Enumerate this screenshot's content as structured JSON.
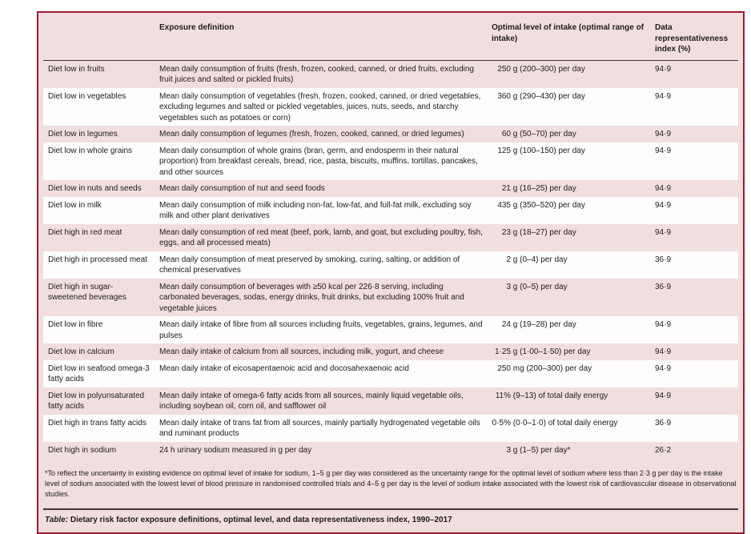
{
  "table": {
    "columns": [
      "",
      "Exposure definition",
      "Optimal level of intake (optimal range of intake)",
      "Data representativeness index (%)"
    ],
    "rows": [
      {
        "risk": "Diet low in fruits",
        "definition": "Mean daily consumption of fruits (fresh, frozen, cooked, canned, or dried fruits, excluding fruit juices and salted or pickled fruits)",
        "optimal_amount": "250",
        "optimal_rest": "g (200–300) per day",
        "dri": "94·9"
      },
      {
        "risk": "Diet low in vegetables",
        "definition": "Mean daily consumption of vegetables (fresh, frozen, cooked, canned, or dried vegetables, excluding legumes and salted or pickled vegetables, juices, nuts, seeds, and starchy vegetables such as potatoes or corn)",
        "optimal_amount": "360",
        "optimal_rest": "g (290–430) per day",
        "dri": "94·9"
      },
      {
        "risk": "Diet low in legumes",
        "definition": "Mean daily consumption of legumes (fresh, frozen, cooked, canned, or dried legumes)",
        "optimal_amount": "60",
        "optimal_rest": "g (50–70) per day",
        "dri": "94·9"
      },
      {
        "risk": "Diet low in whole grains",
        "definition": "Mean daily consumption of whole grains (bran, germ, and endosperm in their natural proportion) from breakfast cereals, bread, rice, pasta, biscuits, muffins, tortillas, pancakes, and other sources",
        "optimal_amount": "125",
        "optimal_rest": "g (100–150) per day",
        "dri": "94·9"
      },
      {
        "risk": "Diet low in nuts and seeds",
        "definition": "Mean daily consumption of nut and seed foods",
        "optimal_amount": "21",
        "optimal_rest": "g (16–25) per day",
        "dri": "94·9"
      },
      {
        "risk": "Diet low in milk",
        "definition": "Mean daily consumption of milk including non-fat, low-fat, and full-fat milk, excluding soy milk and other plant derivatives",
        "optimal_amount": "435",
        "optimal_rest": "g (350–520) per day",
        "dri": "94·9"
      },
      {
        "risk": "Diet high in red meat",
        "definition": "Mean daily consumption of red meat (beef, pork, lamb, and goat, but excluding poultry, fish, eggs, and all processed meats)",
        "optimal_amount": "23",
        "optimal_rest": "g (18–27) per day",
        "dri": "94·9"
      },
      {
        "risk": "Diet high in processed meat",
        "definition": "Mean daily consumption of meat preserved by smoking, curing, salting, or addition of chemical preservatives",
        "optimal_amount": "2",
        "optimal_rest": "g (0–4) per day",
        "dri": "36·9"
      },
      {
        "risk": "Diet high in sugar-sweetened beverages",
        "definition": "Mean daily consumption of beverages with ≥50 kcal per 226·8 serving, including carbonated beverages, sodas, energy drinks, fruit drinks, but excluding 100% fruit and vegetable juices",
        "optimal_amount": "3",
        "optimal_rest": "g (0–5) per day",
        "dri": "36·9"
      },
      {
        "risk": "Diet low in fibre",
        "definition": "Mean daily intake of fibre from all sources including fruits, vegetables, grains, legumes, and pulses",
        "optimal_amount": "24",
        "optimal_rest": "g (19–28) per day",
        "dri": "94·9"
      },
      {
        "risk": "Diet low in calcium",
        "definition": "Mean daily intake of calcium from all sources, including milk, yogurt, and cheese",
        "optimal_amount": "1·25",
        "optimal_rest": "g (1·00–1·50) per day",
        "dri": "94·9"
      },
      {
        "risk": "Diet low in seafood omega-3 fatty acids",
        "definition": "Mean daily intake of eicosapentaenoic acid and docosahexaenoic acid",
        "optimal_amount": "250",
        "optimal_rest": "mg (200–300) per day",
        "dri": "94·9"
      },
      {
        "risk": "Diet low in polyunsaturated fatty acids",
        "definition": "Mean daily intake of omega-6 fatty acids from all sources, mainly liquid vegetable oils, including soybean oil, corn oil, and safflower oil",
        "optimal_amount": "11%",
        "optimal_rest": "(9–13) of total daily energy",
        "dri": "94·9"
      },
      {
        "risk": "Diet high in trans fatty acids",
        "definition": "Mean daily intake of trans fat from all sources, mainly partially hydrogenated vegetable oils and ruminant products",
        "optimal_amount": "0·5%",
        "optimal_rest": "(0·0–1·0) of total daily energy",
        "dri": "36·9"
      },
      {
        "risk": "Diet high in sodium",
        "definition": "24 h urinary sodium measured in g per day",
        "optimal_amount": "3",
        "optimal_rest": "g (1–5) per day*",
        "dri": "26·2"
      }
    ],
    "footnote": "*To reflect the uncertainty in existing evidence on optimal level of intake for sodium, 1–5 g per day was considered as the uncertainty range for the optimal level of sodium where less than 2·3 g per day is the intake level of sodium associated with the lowest level of blood pressure in randomised controlled trials and 4–5 g per day is the level of sodium intake associated with the lowest risk of cardiovascular disease in observational studies.",
    "caption_label": "Table:",
    "caption_text": " Dietary risk factor exposure definitions, optimal level, and data representativeness index, 1990–2017"
  },
  "colors": {
    "card_background": "#F1DEDE",
    "alt_row_background": "#FEFCFC",
    "card_border": "#9E1B32",
    "rule": "#3b3538",
    "text": "#1d1c21"
  }
}
